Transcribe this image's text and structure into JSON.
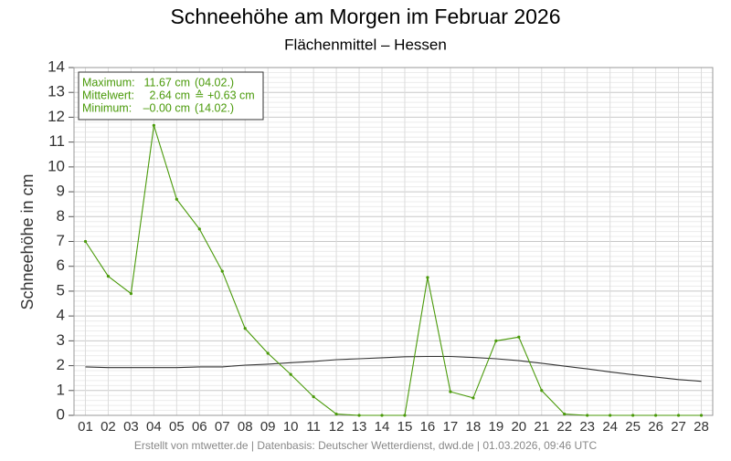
{
  "chart_data": {
    "type": "line",
    "title": "Schneehöhe am Morgen im Februar 2026",
    "subtitle": "Flächenmittel – Hessen",
    "y_label": "Schneehöhe in cm",
    "footer": "Erstellt von mtwetter.de | Datenbasis: Deutscher Wetterdienst, dwd.de | 01.03.2026, 09:46 UTC",
    "stats": [
      [
        "Maximum:",
        "11.67 cm",
        "(04.02.)"
      ],
      [
        "Mittelwert:",
        "2.64 cm",
        "≙ +0.63 cm"
      ],
      [
        "Minimum:",
        "–0.00 cm",
        "(14.02.)"
      ]
    ],
    "categories": [
      "01",
      "02",
      "03",
      "04",
      "05",
      "06",
      "07",
      "08",
      "09",
      "10",
      "11",
      "12",
      "13",
      "14",
      "15",
      "16",
      "17",
      "18",
      "19",
      "20",
      "21",
      "22",
      "23",
      "24",
      "25",
      "26",
      "27",
      "28"
    ],
    "series": [
      {
        "name": "Schneehöhe",
        "color": "#4a9a0a",
        "markers": true,
        "values": [
          7.0,
          5.6,
          4.9,
          11.67,
          8.7,
          7.5,
          5.8,
          3.5,
          2.5,
          1.65,
          0.75,
          0.05,
          0,
          0,
          0,
          5.55,
          0.95,
          0.7,
          3.0,
          3.15,
          1.0,
          0.05,
          0,
          0,
          0,
          0,
          0,
          0
        ]
      },
      {
        "name": "Mittel",
        "color": "#333333",
        "markers": false,
        "values": [
          1.95,
          1.92,
          1.92,
          1.92,
          1.92,
          1.95,
          1.95,
          2.02,
          2.06,
          2.12,
          2.17,
          2.24,
          2.28,
          2.32,
          2.36,
          2.37,
          2.37,
          2.33,
          2.28,
          2.2,
          2.1,
          1.98,
          1.87,
          1.75,
          1.64,
          1.54,
          1.44,
          1.37
        ]
      }
    ],
    "ylim": [
      0,
      14
    ],
    "yticks": [
      0,
      1,
      2,
      3,
      4,
      5,
      6,
      7,
      8,
      9,
      10,
      11,
      12,
      13,
      14
    ],
    "grid": true
  }
}
